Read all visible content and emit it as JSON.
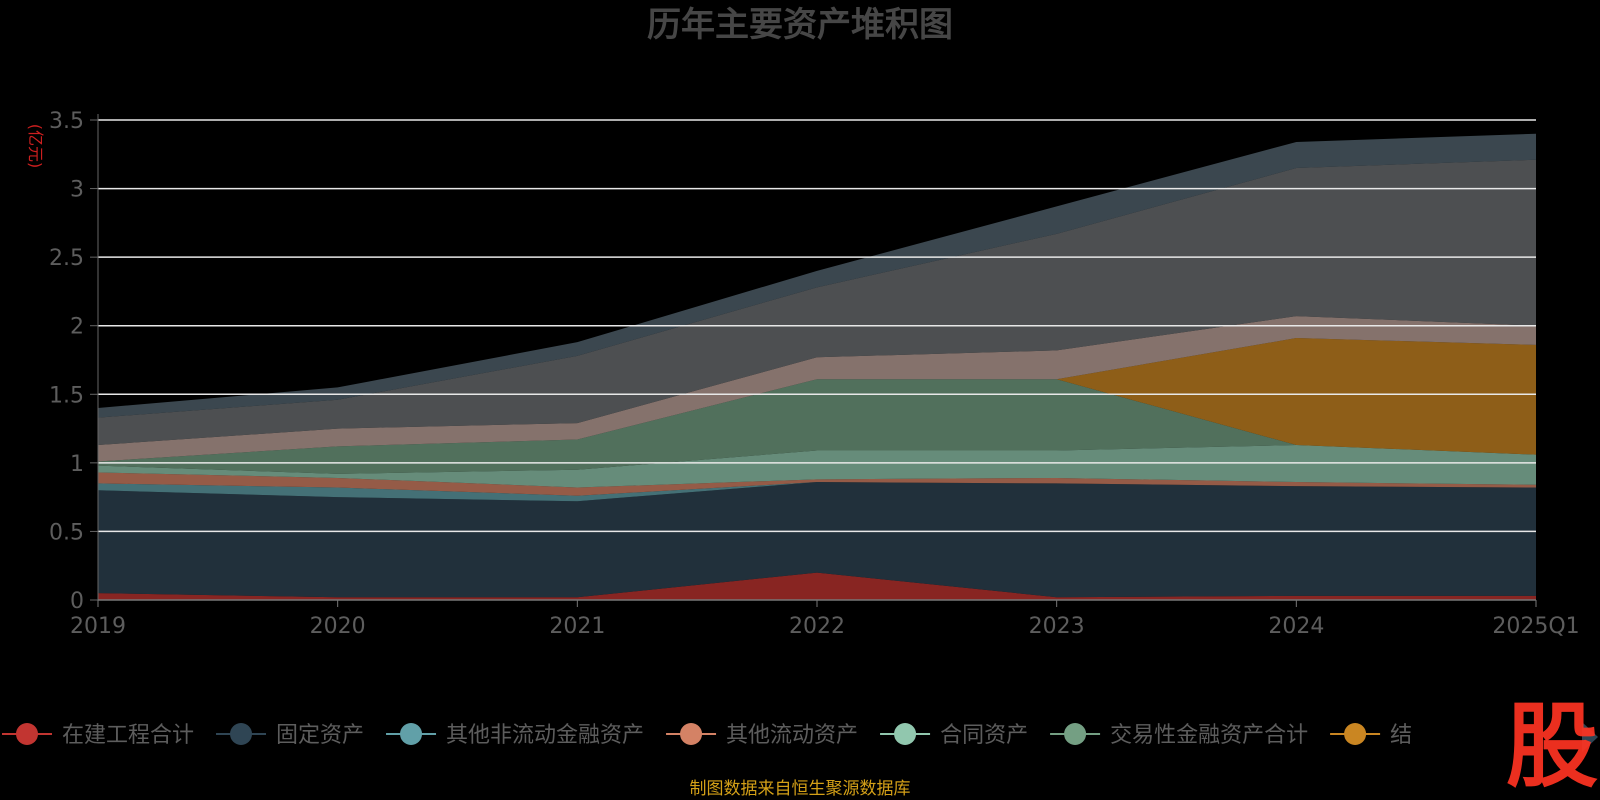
{
  "chart_data": {
    "type": "area",
    "stacked": true,
    "title": "历年主要资产堆积图",
    "ylabel": "(亿元)",
    "ylim": [
      0,
      3.5
    ],
    "yticks": [
      "0",
      "0.5",
      "1",
      "1.5",
      "2",
      "2.5",
      "3",
      "3.5"
    ],
    "categories": [
      "2019",
      "2020",
      "2021",
      "2022",
      "2023",
      "2024",
      "2025Q1"
    ],
    "grid": true,
    "legend_position": "bottom",
    "series": [
      {
        "name": "在建工程合计",
        "color": "#c23531",
        "values": [
          0.05,
          0.02,
          0.02,
          0.2,
          0.02,
          0.03,
          0.03
        ]
      },
      {
        "name": "固定资产",
        "color": "#2f4554",
        "values": [
          0.75,
          0.73,
          0.7,
          0.66,
          0.83,
          0.8,
          0.79
        ]
      },
      {
        "name": "其他非流动金融资产",
        "color": "#61a0a8",
        "values": [
          0.05,
          0.07,
          0.04,
          0.0,
          0.0,
          0.0,
          0.0
        ]
      },
      {
        "name": "其他流动资产",
        "color": "#d48265",
        "values": [
          0.08,
          0.07,
          0.06,
          0.02,
          0.04,
          0.03,
          0.02
        ]
      },
      {
        "name": "合同资产",
        "color": "#91c7ae",
        "values": [
          0.05,
          0.03,
          0.13,
          0.21,
          0.2,
          0.27,
          0.22
        ]
      },
      {
        "name": "交易性金融资产合计",
        "color": "#749f83",
        "values": [
          0.03,
          0.2,
          0.22,
          0.52,
          0.52,
          0.0,
          0.0
        ]
      },
      {
        "name": "结构性存款",
        "color": "#ca8622",
        "values": [
          0.0,
          0.0,
          0.0,
          0.0,
          0.0,
          0.78,
          0.8
        ]
      },
      {
        "name": "",
        "color": "#bda29a",
        "values": [
          0.12,
          0.13,
          0.12,
          0.16,
          0.21,
          0.16,
          0.14
        ]
      },
      {
        "name": "",
        "color": "#6e7074",
        "values": [
          0.2,
          0.21,
          0.49,
          0.51,
          0.85,
          1.08,
          1.21
        ]
      },
      {
        "name": "",
        "color": "#546570",
        "values": [
          0.07,
          0.09,
          0.1,
          0.12,
          0.2,
          0.19,
          0.19
        ]
      }
    ]
  },
  "legend": {
    "items": [
      "在建工程合计",
      "固定资产",
      "其他非流动金融资产",
      "其他流动资产",
      "合同资产",
      "交易性金融资产合计",
      "结"
    ],
    "next_icon": "triangle-right-icon"
  },
  "source_note": "制图数据来自恒生聚源数据库",
  "watermark": "股"
}
